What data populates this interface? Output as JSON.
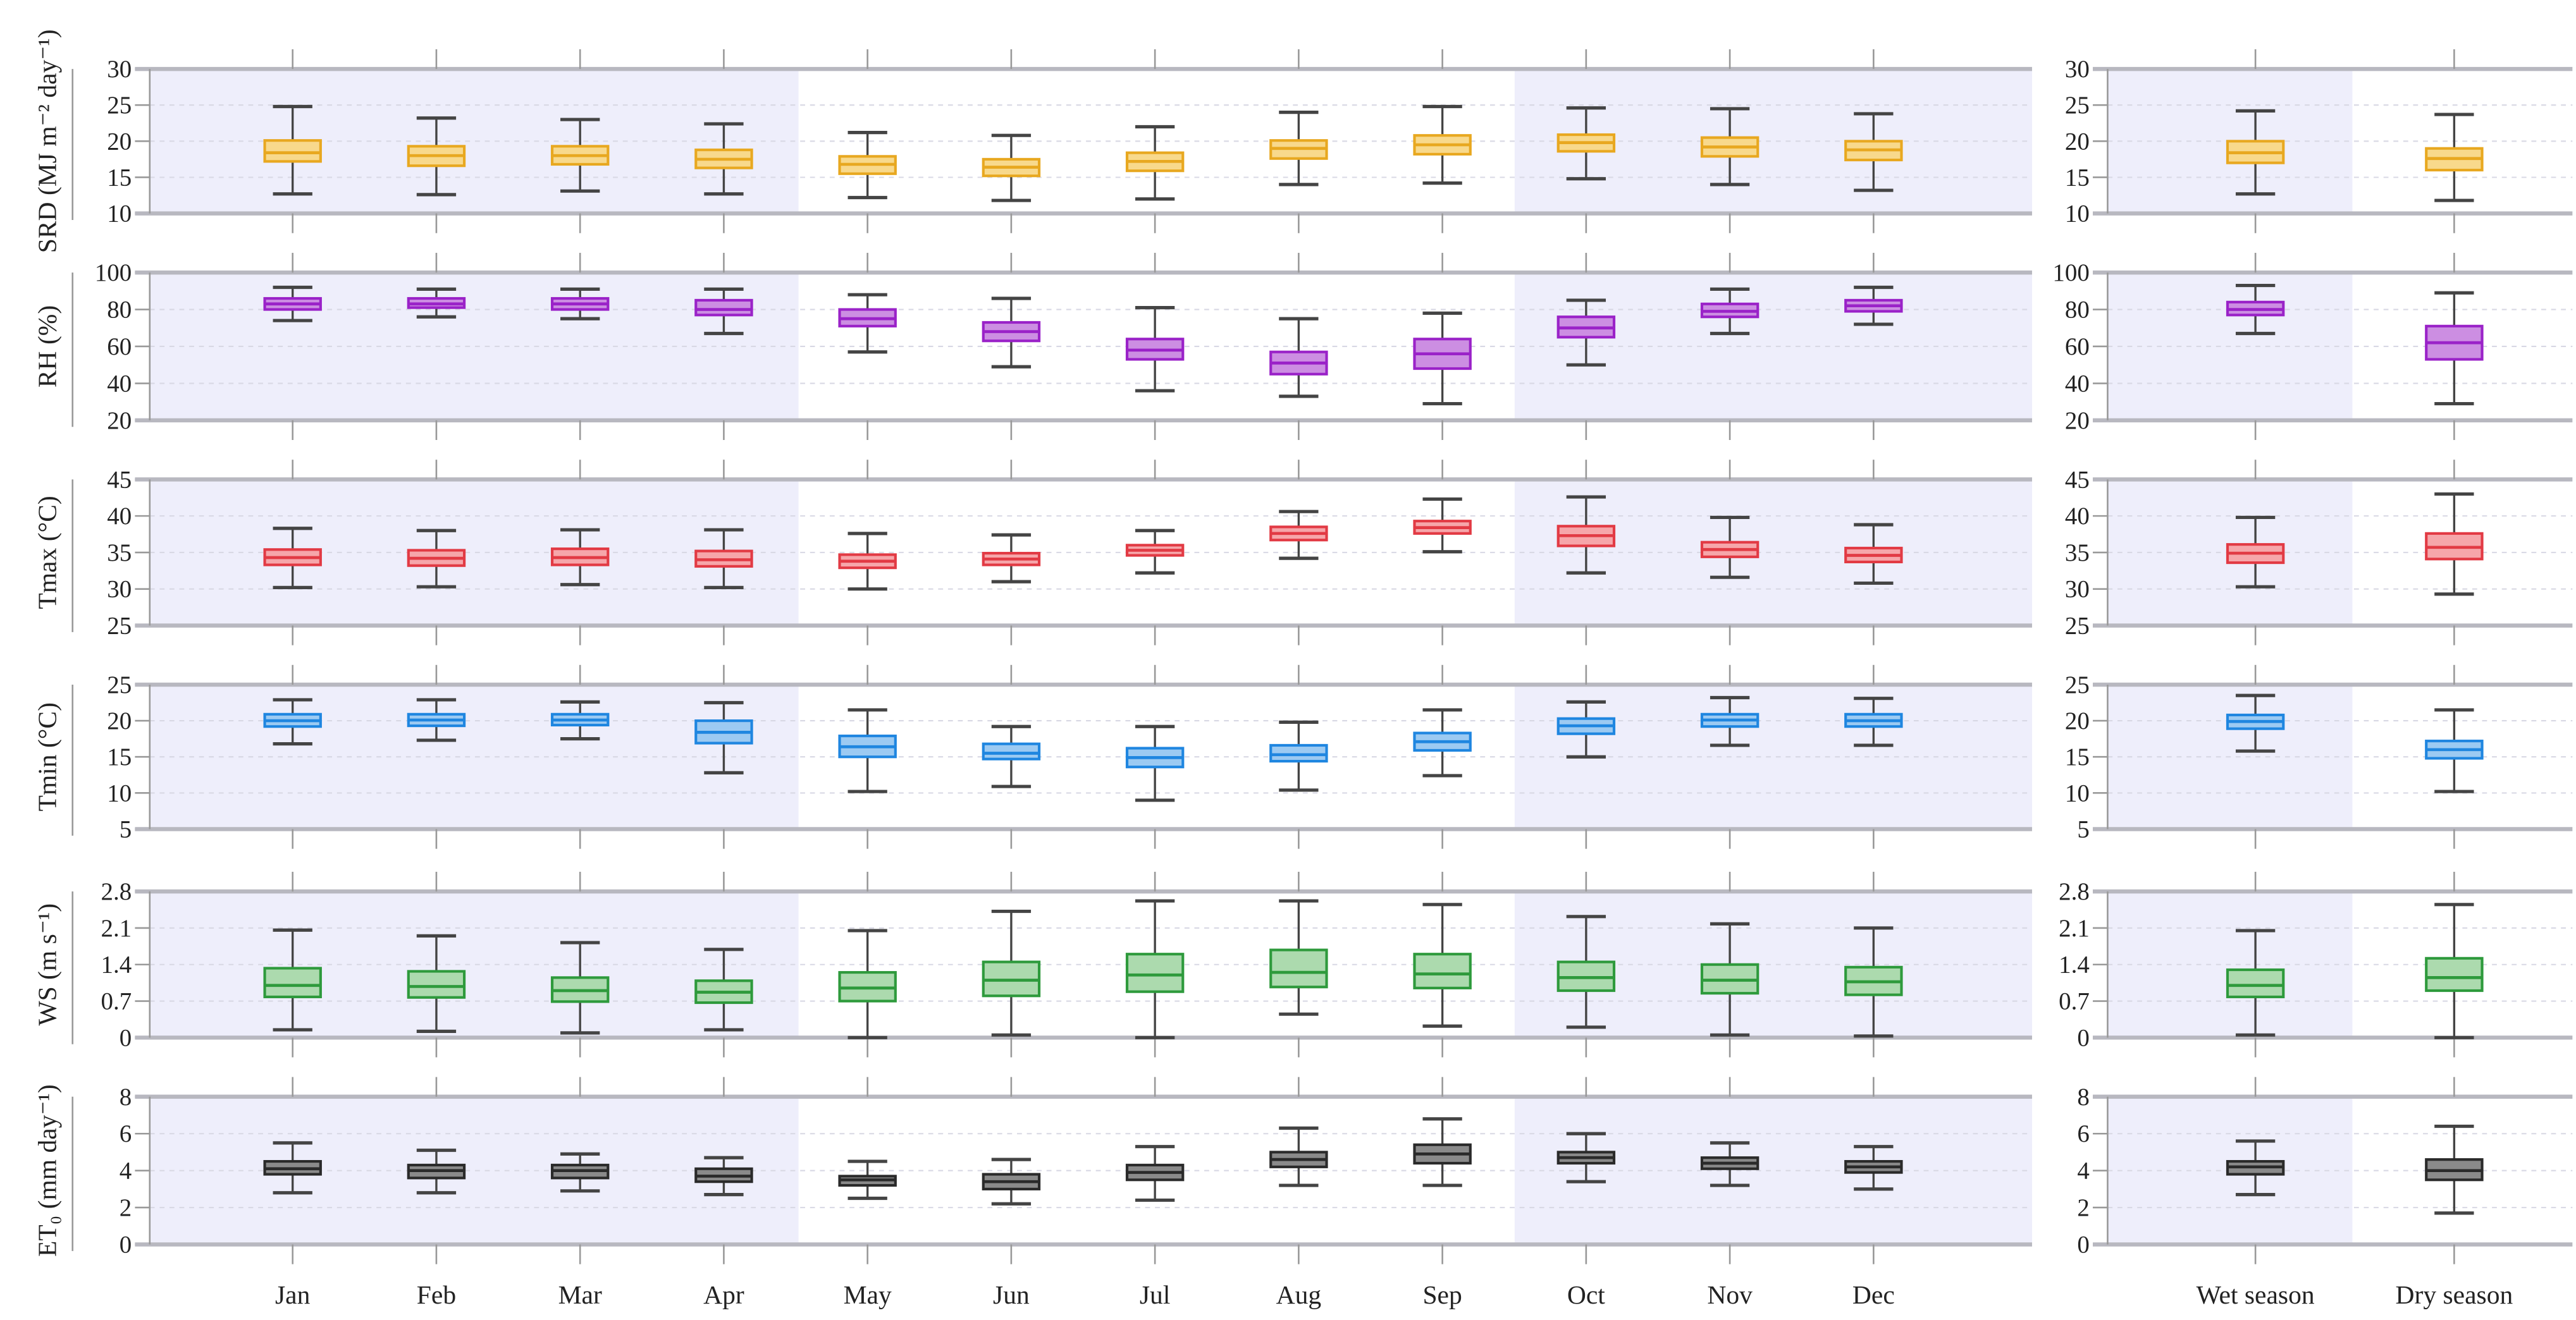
{
  "chart_data": {
    "type": "box",
    "categories_monthly": [
      "Jan",
      "Feb",
      "Mar",
      "Apr",
      "May",
      "Jun",
      "Jul",
      "Aug",
      "Sep",
      "Oct",
      "Nov",
      "Dec"
    ],
    "categories_seasonal": [
      "Wet season",
      "Dry season"
    ],
    "wet_season_months": [
      "Jan",
      "Feb",
      "Mar",
      "Apr",
      "Oct",
      "Nov",
      "Dec"
    ],
    "box_value_order": [
      "lower_whisker",
      "q1",
      "median",
      "q3",
      "upper_whisker"
    ],
    "shading_color": "#eeeefb",
    "panels": [
      {
        "key": "srd",
        "ylabel": "SRD (MJ m⁻² day⁻¹)",
        "ylim": [
          10,
          30
        ],
        "ticks": [
          10,
          15,
          20,
          25,
          30
        ],
        "tick_labels": [
          "10",
          "15",
          "20",
          "25",
          "30"
        ],
        "color": "#e8a820",
        "fill": "#f8d98c",
        "monthly": [
          [
            12.7,
            17.2,
            18.4,
            20.1,
            24.8
          ],
          [
            12.6,
            16.6,
            18.0,
            19.3,
            23.2
          ],
          [
            13.1,
            16.8,
            18.0,
            19.3,
            23.0
          ],
          [
            12.7,
            16.3,
            17.5,
            18.8,
            22.4
          ],
          [
            12.2,
            15.5,
            16.8,
            17.9,
            21.2
          ],
          [
            11.8,
            15.2,
            16.4,
            17.5,
            20.8
          ],
          [
            12.0,
            15.9,
            17.2,
            18.4,
            22.0
          ],
          [
            14.0,
            17.6,
            19.0,
            20.1,
            24.0
          ],
          [
            14.2,
            18.2,
            19.5,
            20.8,
            24.8
          ],
          [
            14.8,
            18.6,
            19.8,
            20.9,
            24.6
          ],
          [
            14.0,
            17.9,
            19.2,
            20.5,
            24.5
          ],
          [
            13.2,
            17.4,
            18.8,
            20.0,
            23.8
          ]
        ],
        "seasonal": [
          [
            12.7,
            17.0,
            18.4,
            20.0,
            24.2
          ],
          [
            11.8,
            16.0,
            17.6,
            19.0,
            23.7
          ]
        ]
      },
      {
        "key": "rh",
        "ylabel": "RH  (%)",
        "ylim": [
          20,
          100
        ],
        "ticks": [
          20,
          40,
          60,
          80,
          100
        ],
        "tick_labels": [
          "20",
          "40",
          "60",
          "80",
          "100"
        ],
        "color": "#9a22c8",
        "fill": "#cc8ee2",
        "monthly": [
          [
            74,
            80,
            83,
            86,
            92
          ],
          [
            76,
            81,
            83,
            86,
            91
          ],
          [
            75,
            80,
            83,
            86,
            91
          ],
          [
            67,
            77,
            80,
            85,
            91
          ],
          [
            57,
            71,
            75,
            80,
            88
          ],
          [
            49,
            63,
            68,
            73,
            86
          ],
          [
            36,
            53,
            58,
            64,
            81
          ],
          [
            33,
            45,
            51,
            57,
            75
          ],
          [
            29,
            48,
            56,
            64,
            78
          ],
          [
            50,
            65,
            70,
            76,
            85
          ],
          [
            67,
            76,
            79,
            83,
            91
          ],
          [
            72,
            79,
            82,
            85,
            92
          ]
        ],
        "seasonal": [
          [
            67,
            77,
            80,
            84,
            93
          ],
          [
            29,
            53,
            62,
            71,
            89
          ]
        ]
      },
      {
        "key": "tmax",
        "ylabel": "Tmax (°C)",
        "ylim": [
          25,
          45
        ],
        "ticks": [
          25,
          30,
          35,
          40,
          45
        ],
        "tick_labels": [
          "25",
          "30",
          "35",
          "40",
          "45"
        ],
        "color": "#e23a44",
        "fill": "#f6a6aa",
        "monthly": [
          [
            30.2,
            33.3,
            34.3,
            35.4,
            38.3
          ],
          [
            30.3,
            33.2,
            34.2,
            35.3,
            38.0
          ],
          [
            30.6,
            33.3,
            34.3,
            35.5,
            38.1
          ],
          [
            30.2,
            33.1,
            34.0,
            35.2,
            38.1
          ],
          [
            30.0,
            32.9,
            33.8,
            34.7,
            37.6
          ],
          [
            31.0,
            33.3,
            34.1,
            34.9,
            37.4
          ],
          [
            32.2,
            34.6,
            35.3,
            36.0,
            38.0
          ],
          [
            34.2,
            36.7,
            37.6,
            38.5,
            40.6
          ],
          [
            35.1,
            37.6,
            38.4,
            39.3,
            42.3
          ],
          [
            32.2,
            35.9,
            37.3,
            38.6,
            42.6
          ],
          [
            31.6,
            34.4,
            35.4,
            36.4,
            39.8
          ],
          [
            30.8,
            33.7,
            34.6,
            35.6,
            38.8
          ]
        ],
        "seasonal": [
          [
            30.3,
            33.6,
            34.9,
            36.1,
            39.8
          ],
          [
            29.3,
            34.1,
            35.7,
            37.6,
            43.0
          ]
        ]
      },
      {
        "key": "tmin",
        "ylabel": "Tmin (°C)",
        "ylim": [
          5,
          25
        ],
        "ticks": [
          5,
          10,
          15,
          20,
          25
        ],
        "tick_labels": [
          "5",
          "10",
          "15",
          "20",
          "25"
        ],
        "color": "#1f86e0",
        "fill": "#9ccaf2",
        "monthly": [
          [
            16.8,
            19.2,
            20.0,
            20.9,
            22.9
          ],
          [
            17.3,
            19.3,
            20.1,
            20.9,
            22.9
          ],
          [
            17.5,
            19.4,
            20.1,
            20.9,
            22.6
          ],
          [
            12.8,
            16.9,
            18.4,
            20.0,
            22.5
          ],
          [
            10.2,
            15.0,
            16.4,
            17.9,
            21.5
          ],
          [
            10.9,
            14.7,
            15.5,
            16.8,
            19.2
          ],
          [
            9.0,
            13.6,
            14.9,
            16.2,
            19.2
          ],
          [
            10.4,
            14.4,
            15.3,
            16.6,
            19.8
          ],
          [
            12.4,
            15.9,
            17.1,
            18.3,
            21.5
          ],
          [
            15.0,
            18.2,
            19.3,
            20.3,
            22.6
          ],
          [
            16.6,
            19.2,
            20.1,
            20.9,
            23.2
          ],
          [
            16.6,
            19.2,
            20.0,
            20.9,
            23.1
          ]
        ],
        "seasonal": [
          [
            15.8,
            18.9,
            19.9,
            20.8,
            23.5
          ],
          [
            10.2,
            14.8,
            16.0,
            17.2,
            21.5
          ]
        ]
      },
      {
        "key": "ws",
        "ylabel": "WS  (m s⁻¹)",
        "ylim": [
          0,
          2.8
        ],
        "ticks": [
          0,
          0.7,
          1.4,
          2.1,
          2.8
        ],
        "tick_labels": [
          "0",
          "0.7",
          "1.4",
          "2.1",
          "2.8"
        ],
        "color": "#2e9a3c",
        "fill": "#acdaae",
        "monthly": [
          [
            0.15,
            0.78,
            1.0,
            1.33,
            2.06
          ],
          [
            0.12,
            0.77,
            0.98,
            1.27,
            1.95
          ],
          [
            0.09,
            0.69,
            0.9,
            1.15,
            1.82
          ],
          [
            0.15,
            0.67,
            0.87,
            1.09,
            1.69
          ],
          [
            0.0,
            0.7,
            0.95,
            1.25,
            2.05
          ],
          [
            0.05,
            0.8,
            1.1,
            1.45,
            2.42
          ],
          [
            0.0,
            0.88,
            1.2,
            1.6,
            2.62
          ],
          [
            0.45,
            0.97,
            1.25,
            1.68,
            2.62
          ],
          [
            0.22,
            0.95,
            1.22,
            1.6,
            2.55
          ],
          [
            0.2,
            0.9,
            1.15,
            1.45,
            2.32
          ],
          [
            0.05,
            0.85,
            1.1,
            1.4,
            2.18
          ],
          [
            0.03,
            0.82,
            1.07,
            1.35,
            2.1
          ]
        ],
        "seasonal": [
          [
            0.05,
            0.78,
            1.0,
            1.3,
            2.05
          ],
          [
            0.0,
            0.9,
            1.15,
            1.52,
            2.55
          ]
        ]
      },
      {
        "key": "et0",
        "ylabel": "ET₀ (mm day⁻¹)",
        "ylim": [
          0,
          8
        ],
        "ticks": [
          0,
          2,
          4,
          6,
          8
        ],
        "tick_labels": [
          "0",
          "2",
          "4",
          "6",
          "8"
        ],
        "color": "#2a2a2a",
        "fill": "#8a8a8a",
        "monthly": [
          [
            2.8,
            3.8,
            4.1,
            4.5,
            5.5
          ],
          [
            2.8,
            3.6,
            4.0,
            4.3,
            5.1
          ],
          [
            2.9,
            3.6,
            4.0,
            4.3,
            4.9
          ],
          [
            2.7,
            3.4,
            3.7,
            4.1,
            4.7
          ],
          [
            2.5,
            3.2,
            3.5,
            3.7,
            4.5
          ],
          [
            2.2,
            3.0,
            3.4,
            3.8,
            4.6
          ],
          [
            2.4,
            3.5,
            3.9,
            4.3,
            5.3
          ],
          [
            3.2,
            4.2,
            4.6,
            5.0,
            6.3
          ],
          [
            3.2,
            4.4,
            4.9,
            5.4,
            6.8
          ],
          [
            3.4,
            4.4,
            4.7,
            5.0,
            6.0
          ],
          [
            3.2,
            4.1,
            4.4,
            4.7,
            5.5
          ],
          [
            3.0,
            3.9,
            4.2,
            4.5,
            5.3
          ]
        ],
        "seasonal": [
          [
            2.7,
            3.8,
            4.2,
            4.5,
            5.6
          ],
          [
            1.7,
            3.5,
            4.0,
            4.6,
            6.4
          ]
        ]
      }
    ]
  }
}
